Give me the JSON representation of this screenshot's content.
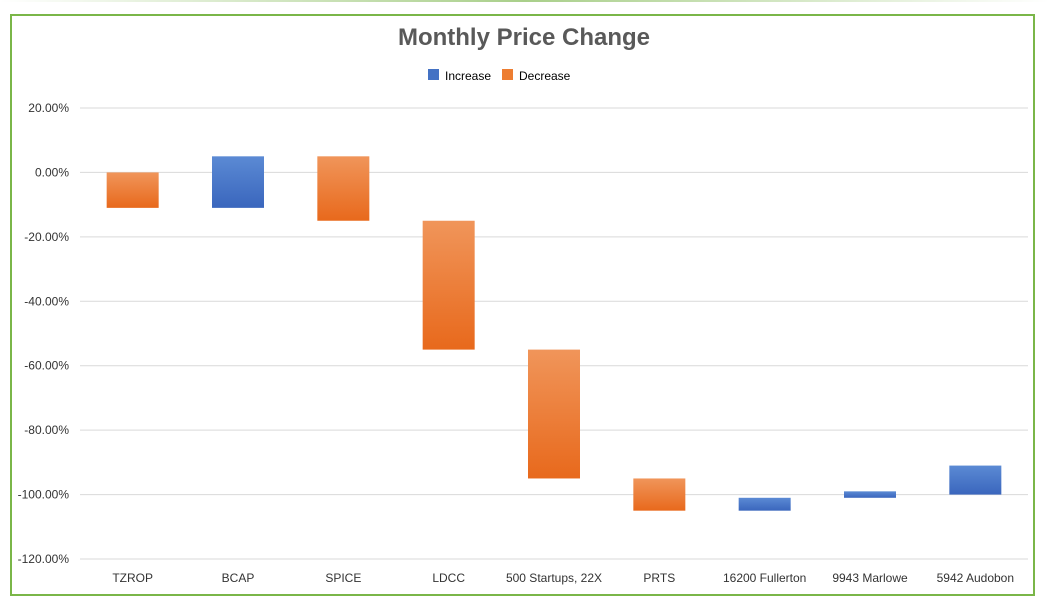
{
  "chart_data": {
    "type": "bar",
    "subtype": "waterfall",
    "title": "Monthly Price Change",
    "xlabel": "",
    "ylabel": "",
    "ylim": [
      -120,
      20
    ],
    "ytick_values": [
      20,
      0,
      -20,
      -40,
      -60,
      -80,
      -100,
      -120
    ],
    "ytick_labels": [
      "20.00%",
      "0.00%",
      "-20.00%",
      "-40.00%",
      "-60.00%",
      "-80.00%",
      "-100.00%",
      "-120.00%"
    ],
    "grid": true,
    "legend_position": "top",
    "legend": [
      {
        "name": "Increase",
        "color": "#4472c4"
      },
      {
        "name": "Decrease",
        "color": "#ed7d31"
      }
    ],
    "categories": [
      "TZROP",
      "BCAP",
      "SPICE",
      "LDCC",
      "500 Startups, 22X",
      "PRTS",
      "16200 Fullerton",
      "9943 Marlowe",
      "5942 Audobon"
    ],
    "bars": [
      {
        "start": 0,
        "end": -11,
        "kind": "Decrease"
      },
      {
        "start": -11,
        "end": 5,
        "kind": "Increase"
      },
      {
        "start": 5,
        "end": -15,
        "kind": "Decrease"
      },
      {
        "start": -15,
        "end": -55,
        "kind": "Decrease"
      },
      {
        "start": -55,
        "end": -95,
        "kind": "Decrease"
      },
      {
        "start": -95,
        "end": -105,
        "kind": "Decrease"
      },
      {
        "start": -101,
        "end": -105,
        "kind": "Increase"
      },
      {
        "start": -99,
        "end": -101,
        "kind": "Increase"
      },
      {
        "start": -91,
        "end": -100,
        "kind": "Increase"
      }
    ]
  }
}
